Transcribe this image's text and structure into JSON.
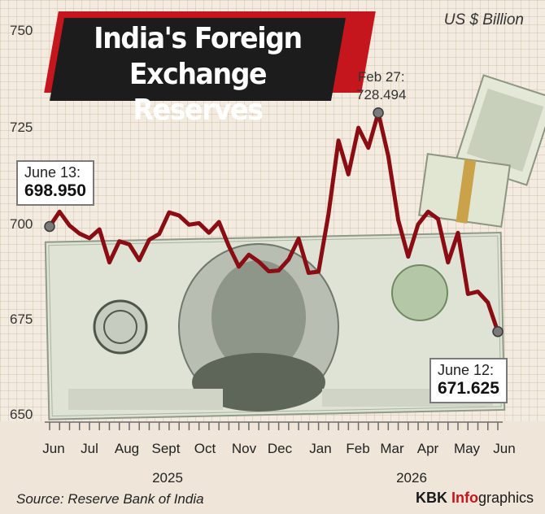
{
  "title_line1": "India's Foreign",
  "title_line2": "Exchange Reserves",
  "unit": "US $ Billion",
  "source": "Source: Reserve Bank of India",
  "brand": {
    "prefix": "KBK ",
    "accent": "Info",
    "suffix": "graphics"
  },
  "callouts": {
    "start": {
      "date": "June 13:",
      "value": "698.950"
    },
    "peak": {
      "date": "Feb 27:",
      "value": "728.494"
    },
    "end": {
      "date": "June 12:",
      "value": "671.625"
    }
  },
  "colors": {
    "line": "#8b0d14",
    "title_red": "#c4161c",
    "title_black": "#1c1c1c"
  },
  "chart_data": {
    "type": "line",
    "title": "India's Foreign Exchange Reserves",
    "ylabel": "US $ Billion",
    "xlabel": "",
    "ylim": [
      650,
      750
    ],
    "yticks": [
      "750",
      "725",
      "700",
      "675",
      "650"
    ],
    "x_month_labels": [
      "Jun",
      "Jul",
      "Aug",
      "Sept",
      "Oct",
      "Nov",
      "Dec",
      "Jan",
      "Feb",
      "Mar",
      "Apr",
      "May",
      "Jun"
    ],
    "x_year_labels": [
      "2025",
      "2026"
    ],
    "grid": true,
    "series": [
      {
        "values": [
          698.95,
          702.8,
          699.2,
          697.1,
          695.9,
          698.2,
          689.6,
          695.1,
          694.3,
          690.2,
          695.5,
          697.0,
          702.6,
          701.8,
          699.4,
          699.8,
          697.3,
          700.1,
          693.8,
          688.5,
          691.6,
          689.8,
          687.3,
          687.5,
          690.4,
          695.8,
          686.9,
          687.2,
          702.1,
          721.3,
          712.5,
          724.6,
          719.4,
          728.494,
          717.3,
          700.6,
          691.1,
          699.5,
          702.8,
          700.9,
          689.6,
          697.3,
          681.4,
          682.0,
          679.2,
          671.625
        ]
      }
    ]
  }
}
